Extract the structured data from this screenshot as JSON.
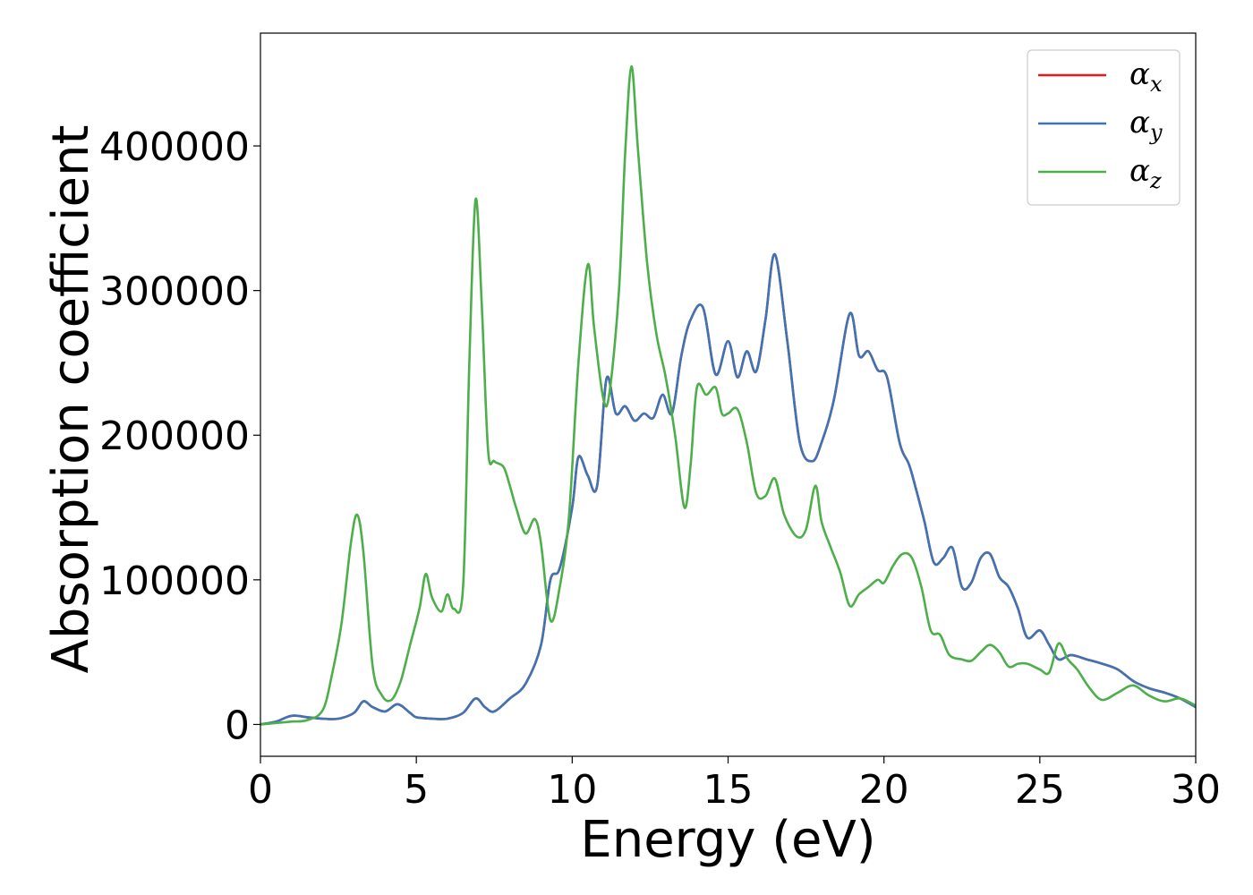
{
  "chart_data": {
    "type": "line",
    "title": "",
    "xlabel": "Energy (eV)",
    "ylabel": "Absorption coefficient",
    "xlim": [
      0,
      30
    ],
    "ylim": [
      -22000,
      478000
    ],
    "xticks": [
      0,
      5,
      10,
      15,
      20,
      25,
      30
    ],
    "yticks": [
      0,
      100000,
      200000,
      300000,
      400000
    ],
    "xtick_labels": [
      "0",
      "5",
      "10",
      "15",
      "20",
      "25",
      "30"
    ],
    "ytick_labels": [
      "0",
      "100000",
      "200000",
      "300000",
      "400000"
    ],
    "grid": false,
    "legend": {
      "placement": "top-right"
    },
    "series": [
      {
        "name": "α",
        "sub": "x",
        "color": "#e41a1c",
        "x": [
          0,
          0.5,
          1,
          1.5,
          2,
          2.5,
          3,
          3.3,
          3.6,
          4,
          4.4,
          4.8,
          5,
          5.5,
          6,
          6.5,
          6.9,
          7.2,
          7.5,
          8,
          8.5,
          9,
          9.3,
          9.6,
          10,
          10.2,
          10.5,
          10.8,
          11.1,
          11.4,
          11.7,
          12,
          12.3,
          12.6,
          12.9,
          13.2,
          13.5,
          13.8,
          14.2,
          14.6,
          15,
          15.3,
          15.6,
          15.9,
          16.2,
          16.5,
          16.9,
          17.3,
          17.7,
          18,
          18.4,
          18.9,
          19.2,
          19.5,
          19.8,
          20.1,
          20.5,
          20.8,
          21,
          21.3,
          21.6,
          21.9,
          22.2,
          22.5,
          22.8,
          23.1,
          23.4,
          23.7,
          24,
          24.3,
          24.6,
          25,
          25.3,
          25.6,
          26,
          26.5,
          27,
          27.5,
          28,
          28.5,
          29,
          29.5,
          30
        ],
        "values": [
          0,
          2000,
          6000,
          5000,
          4000,
          4000,
          8000,
          16000,
          12000,
          9000,
          14000,
          8000,
          5000,
          4000,
          4000,
          8000,
          18000,
          12000,
          9000,
          18000,
          28000,
          55000,
          100000,
          108000,
          150000,
          185000,
          172000,
          165000,
          239000,
          215000,
          220000,
          210000,
          215000,
          212000,
          228000,
          215000,
          255000,
          280000,
          288000,
          242000,
          265000,
          240000,
          258000,
          244000,
          280000,
          325000,
          265000,
          195000,
          182000,
          195000,
          225000,
          284000,
          255000,
          258000,
          245000,
          240000,
          195000,
          180000,
          165000,
          140000,
          112000,
          115000,
          122000,
          95000,
          98000,
          115000,
          118000,
          102000,
          95000,
          80000,
          60000,
          65000,
          55000,
          45000,
          48000,
          45000,
          42000,
          38000,
          30000,
          25000,
          22000,
          18000,
          12000
        ]
      },
      {
        "name": "α",
        "sub": "y",
        "color": "#3f74b4",
        "x": [
          0,
          0.5,
          1,
          1.5,
          2,
          2.5,
          3,
          3.3,
          3.6,
          4,
          4.4,
          4.8,
          5,
          5.5,
          6,
          6.5,
          6.9,
          7.2,
          7.5,
          8,
          8.5,
          9,
          9.3,
          9.6,
          10,
          10.2,
          10.5,
          10.8,
          11.1,
          11.4,
          11.7,
          12,
          12.3,
          12.6,
          12.9,
          13.2,
          13.5,
          13.8,
          14.2,
          14.6,
          15,
          15.3,
          15.6,
          15.9,
          16.2,
          16.5,
          16.9,
          17.3,
          17.7,
          18,
          18.4,
          18.9,
          19.2,
          19.5,
          19.8,
          20.1,
          20.5,
          20.8,
          21,
          21.3,
          21.6,
          21.9,
          22.2,
          22.5,
          22.8,
          23.1,
          23.4,
          23.7,
          24,
          24.3,
          24.6,
          25,
          25.3,
          25.6,
          26,
          26.5,
          27,
          27.5,
          28,
          28.5,
          29,
          29.5,
          30
        ],
        "values": [
          0,
          2000,
          6000,
          5000,
          4000,
          4000,
          8000,
          16000,
          12000,
          9000,
          14000,
          8000,
          5000,
          4000,
          4000,
          8000,
          18000,
          12000,
          9000,
          18000,
          28000,
          55000,
          100000,
          108000,
          150000,
          185000,
          172000,
          165000,
          239000,
          215000,
          220000,
          210000,
          215000,
          212000,
          228000,
          215000,
          255000,
          280000,
          288000,
          242000,
          265000,
          240000,
          258000,
          244000,
          280000,
          325000,
          265000,
          195000,
          182000,
          195000,
          225000,
          284000,
          255000,
          258000,
          245000,
          240000,
          195000,
          180000,
          165000,
          140000,
          112000,
          115000,
          122000,
          95000,
          98000,
          115000,
          118000,
          102000,
          95000,
          80000,
          60000,
          65000,
          55000,
          45000,
          48000,
          45000,
          42000,
          38000,
          30000,
          25000,
          22000,
          18000,
          12000
        ]
      },
      {
        "name": "α",
        "sub": "z",
        "color": "#4daf4a",
        "x": [
          0,
          0.5,
          1,
          1.5,
          2,
          2.3,
          2.6,
          2.9,
          3.1,
          3.3,
          3.6,
          3.9,
          4.2,
          4.5,
          4.8,
          5.1,
          5.3,
          5.5,
          5.8,
          6,
          6.2,
          6.5,
          6.7,
          6.9,
          7.1,
          7.3,
          7.5,
          7.8,
          8,
          8.2,
          8.5,
          8.8,
          9,
          9.3,
          9.6,
          9.9,
          10.2,
          10.5,
          10.7,
          11,
          11.2,
          11.5,
          11.7,
          11.9,
          12.1,
          12.4,
          12.7,
          13,
          13.3,
          13.6,
          13.8,
          14,
          14.3,
          14.6,
          14.8,
          15,
          15.3,
          15.6,
          15.9,
          16.2,
          16.5,
          16.8,
          17.2,
          17.5,
          17.8,
          18,
          18.3,
          18.6,
          18.9,
          19.2,
          19.5,
          19.8,
          20,
          20.3,
          20.6,
          20.9,
          21.2,
          21.5,
          21.8,
          22.1,
          22.5,
          22.8,
          23.1,
          23.4,
          23.7,
          24,
          24.3,
          24.6,
          25,
          25.3,
          25.6,
          25.9,
          26.2,
          26.6,
          27,
          27.5,
          28,
          28.5,
          29,
          29.5,
          30
        ],
        "values": [
          0,
          1000,
          2000,
          3000,
          10000,
          35000,
          70000,
          125000,
          145000,
          120000,
          40000,
          20000,
          17000,
          30000,
          55000,
          80000,
          104000,
          88000,
          78000,
          90000,
          80000,
          95000,
          250000,
          363000,
          290000,
          190000,
          182000,
          178000,
          165000,
          150000,
          132000,
          142000,
          125000,
          72000,
          95000,
          145000,
          250000,
          318000,
          275000,
          225000,
          230000,
          300000,
          395000,
          455000,
          400000,
          320000,
          270000,
          240000,
          200000,
          150000,
          180000,
          233000,
          228000,
          233000,
          215000,
          215000,
          218000,
          195000,
          160000,
          158000,
          170000,
          145000,
          130000,
          135000,
          165000,
          140000,
          122000,
          105000,
          82000,
          90000,
          95000,
          100000,
          98000,
          110000,
          118000,
          115000,
          95000,
          65000,
          62000,
          48000,
          45000,
          44000,
          50000,
          55000,
          50000,
          40000,
          42000,
          42000,
          38000,
          36000,
          56000,
          45000,
          38000,
          25000,
          17000,
          22000,
          27000,
          20000,
          16000,
          18000,
          13000
        ]
      }
    ]
  }
}
